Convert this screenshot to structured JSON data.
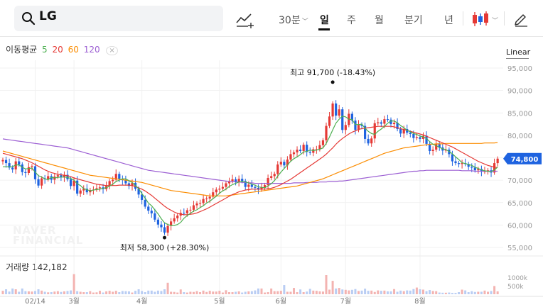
{
  "search": {
    "query": "LG"
  },
  "toolbar": {
    "periods": {
      "minute": "30분",
      "day": "일",
      "week": "주",
      "month": "월",
      "quarter": "분기",
      "year": "년"
    },
    "icons": [
      "search-icon",
      "drawing-tool-icon",
      "chevron-down-icon",
      "candlestick-type-icon",
      "pencil-icon"
    ]
  },
  "legend": {
    "label": "이동평균",
    "ma": [
      {
        "period": "5",
        "color": "#4caf50"
      },
      {
        "period": "20",
        "color": "#e53935"
      },
      {
        "period": "60",
        "color": "#fb8c00"
      },
      {
        "period": "120",
        "color": "#9c5fd3"
      }
    ],
    "close_symbol": "×"
  },
  "scale_label": "Linear",
  "volume": {
    "label": "거래량",
    "value": "142,182"
  },
  "watermark": [
    "NAVER",
    "FINANCIAL"
  ],
  "colors": {
    "up": "#e53935",
    "down": "#1e63e0",
    "price_tag": "#1e63e0"
  },
  "chart_data": {
    "type": "candlestick",
    "y_ticks": [
      "95,000",
      "90,000",
      "85,000",
      "80,000",
      "75,000",
      "70,000",
      "65,000",
      "60,000",
      "55,000"
    ],
    "ylim": [
      53500,
      97000
    ],
    "x_tick_labels": [
      {
        "label": "02/14",
        "index": 10
      },
      {
        "label": "3월",
        "index": 22
      },
      {
        "label": "4월",
        "index": 43
      },
      {
        "label": "5월",
        "index": 67
      },
      {
        "label": "6월",
        "index": 86
      },
      {
        "label": "7월",
        "index": 106
      },
      {
        "label": "8월",
        "index": 129
      }
    ],
    "volume_ticks": [
      "1000k",
      "500k"
    ],
    "annotations": {
      "high": {
        "prefix": "최고",
        "value": "91,700",
        "change": "(-18.43%)",
        "index": 102,
        "price": 91700
      },
      "low": {
        "prefix": "최저",
        "value": "58,300",
        "change": "(+28.30%)",
        "index": 50,
        "price": 58300
      }
    },
    "current_price": {
      "label": "74,800",
      "value": 74800
    },
    "closes": [
      74500,
      73800,
      72800,
      72400,
      74200,
      73500,
      71800,
      71600,
      72900,
      73100,
      70200,
      68800,
      70400,
      70200,
      70900,
      70100,
      70800,
      71100,
      70600,
      71200,
      70200,
      68700,
      69900,
      67000,
      67700,
      68100,
      67300,
      67800,
      67900,
      68200,
      68400,
      68000,
      68700,
      69800,
      70100,
      71400,
      70300,
      70000,
      69300,
      68700,
      69400,
      68100,
      66800,
      65600,
      64100,
      63200,
      62600,
      61200,
      60100,
      59500,
      58300,
      59800,
      60800,
      61500,
      62100,
      62700,
      62600,
      63300,
      63400,
      64400,
      64800,
      64900,
      65800,
      65900,
      66300,
      67300,
      67900,
      68100,
      68500,
      69300,
      69800,
      70200,
      69600,
      70300,
      69800,
      68500,
      69000,
      68500,
      68300,
      67900,
      68400,
      68900,
      70500,
      70900,
      71400,
      73500,
      74100,
      73300,
      74600,
      75800,
      76200,
      76800,
      76500,
      77900,
      76300,
      76100,
      76900,
      76900,
      77800,
      78900,
      82100,
      84200,
      87100,
      84400,
      85800,
      81200,
      82300,
      84800,
      83300,
      81200,
      82400,
      82100,
      79200,
      78200,
      79300,
      82700,
      82900,
      82600,
      83600,
      83500,
      82500,
      82800,
      81400,
      80400,
      81400,
      80600,
      80300,
      79400,
      79600,
      79200,
      79900,
      78100,
      76500,
      76800,
      78000,
      77300,
      76600,
      76800,
      75800,
      74200,
      73800,
      73600,
      73800,
      73600,
      73000,
      72800,
      72200,
      72500,
      71900,
      72000,
      72200,
      71700,
      73800,
      74800
    ],
    "ma5": [
      73000,
      73000,
      73000,
      73000,
      73400,
      73400,
      72900,
      72500,
      72600,
      72700,
      71800,
      71000,
      70700,
      70300,
      70100,
      70600,
      70500,
      70600,
      70700,
      70700,
      70600,
      70400,
      70000,
      69200,
      68800,
      68100,
      67900,
      67600,
      67800,
      67900,
      68000,
      68200,
      68300,
      68700,
      69100,
      69700,
      70000,
      70300,
      70300,
      69900,
      69500,
      68800,
      68100,
      67000,
      66000,
      64900,
      64300,
      63400,
      62500,
      61400,
      60500,
      60100,
      59900,
      59900,
      60100,
      60600,
      61500,
      62100,
      62600,
      63100,
      63400,
      63900,
      64300,
      64900,
      65300,
      65900,
      66400,
      67100,
      67600,
      68000,
      68600,
      69000,
      69300,
      69600,
      69700,
      69600,
      69400,
      69100,
      68900,
      68500,
      68400,
      68300,
      68700,
      69200,
      69900,
      70900,
      71800,
      72600,
      73400,
      74200,
      74800,
      75200,
      75700,
      76300,
      76400,
      76700,
      76600,
      76700,
      76900,
      77200,
      78200,
      79600,
      81200,
      82700,
      83600,
      84300,
      84100,
      83600,
      83500,
      82400,
      82400,
      82500,
      81600,
      80900,
      80400,
      80200,
      80900,
      81400,
      82000,
      82700,
      83200,
      83200,
      82800,
      82200,
      81700,
      81100,
      80800,
      80400,
      80200,
      79800,
      79700,
      79300,
      78600,
      78000,
      77700,
      77300,
      77000,
      76800,
      76400,
      75900,
      75200,
      74600,
      73900,
      73700,
      73500,
      73300,
      72900,
      72600,
      72300,
      72100,
      72000,
      71900,
      72300,
      72900
    ],
    "ma20": [
      76000,
      75800,
      75600,
      75400,
      75200,
      75000,
      74800,
      74500,
      74200,
      73900,
      73500,
      73100,
      72700,
      72300,
      72000,
      71700,
      71500,
      71300,
      71200,
      71100,
      71000,
      70800,
      70500,
      70300,
      70100,
      69900,
      69700,
      69500,
      69300,
      69100,
      69000,
      68900,
      68800,
      68800,
      68800,
      68800,
      68900,
      68900,
      68900,
      68900,
      68800,
      68600,
      68300,
      68000,
      67600,
      67100,
      66600,
      66000,
      65400,
      64800,
      64200,
      63700,
      63300,
      62900,
      62600,
      62400,
      62300,
      62300,
      62400,
      62500,
      62700,
      63000,
      63300,
      63600,
      64000,
      64400,
      64800,
      65200,
      65600,
      66000,
      66400,
      66800,
      67100,
      67400,
      67600,
      67800,
      67900,
      68000,
      68000,
      68000,
      68000,
      68000,
      68100,
      68200,
      68400,
      68700,
      69000,
      69400,
      69800,
      70200,
      70700,
      71200,
      71700,
      72200,
      72700,
      73200,
      73700,
      74200,
      74700,
      75200,
      75800,
      76500,
      77200,
      78000,
      78700,
      79300,
      79800,
      80300,
      80700,
      81000,
      81300,
      81500,
      81600,
      81700,
      81800,
      81900,
      82000,
      82000,
      82000,
      82000,
      82000,
      81900,
      81700,
      81500,
      81300,
      81100,
      80900,
      80700,
      80500,
      80300,
      80100,
      79800,
      79500,
      79200,
      78900,
      78600,
      78300,
      78000,
      77700,
      77400,
      77000,
      76600,
      76200,
      75800,
      75400,
      75000,
      74600,
      74200,
      73900,
      73600,
      73300,
      73100,
      72900,
      72800
    ],
    "ma60": [
      76500,
      76300,
      76100,
      75900,
      75700,
      75500,
      75300,
      75100,
      74900,
      74700,
      74500,
      74300,
      74100,
      73900,
      73700,
      73500,
      73300,
      73100,
      72900,
      72700,
      72500,
      72300,
      72100,
      71900,
      71700,
      71500,
      71300,
      71100,
      71000,
      70900,
      70800,
      70700,
      70600,
      70500,
      70400,
      70300,
      70200,
      70100,
      70000,
      69900,
      69800,
      69700,
      69600,
      69500,
      69300,
      69100,
      68900,
      68700,
      68500,
      68300,
      68100,
      67900,
      67700,
      67600,
      67500,
      67400,
      67300,
      67200,
      67100,
      67000,
      66900,
      66800,
      66700,
      66600,
      66500,
      66500,
      66500,
      66500,
      66500,
      66500,
      66600,
      66700,
      66800,
      66900,
      67000,
      67100,
      67200,
      67300,
      67400,
      67500,
      67600,
      67700,
      67800,
      67900,
      68000,
      68100,
      68200,
      68300,
      68400,
      68500,
      68600,
      68700,
      68900,
      69100,
      69300,
      69500,
      69700,
      69900,
      70100,
      70300,
      70600,
      70900,
      71200,
      71500,
      71800,
      72100,
      72400,
      72700,
      73000,
      73300,
      73600,
      73900,
      74200,
      74500,
      74800,
      75100,
      75400,
      75700,
      76000,
      76200,
      76400,
      76600,
      76800,
      77000,
      77200,
      77300,
      77400,
      77500,
      77600,
      77700,
      77800,
      77900,
      78000,
      78000,
      78100,
      78100,
      78100,
      78200,
      78200,
      78200,
      78200,
      78200,
      78200,
      78200,
      78200,
      78200,
      78200,
      78200,
      78200,
      78300,
      78300,
      78300,
      78300,
      78400
    ],
    "ma120": [
      79200,
      79100,
      79000,
      78900,
      78800,
      78700,
      78600,
      78500,
      78400,
      78300,
      78200,
      78100,
      78000,
      77900,
      77800,
      77700,
      77600,
      77500,
      77400,
      77300,
      77200,
      77000,
      76800,
      76600,
      76400,
      76200,
      76000,
      75800,
      75600,
      75400,
      75200,
      75000,
      74800,
      74600,
      74400,
      74200,
      74000,
      73800,
      73600,
      73400,
      73200,
      73000,
      72800,
      72600,
      72400,
      72200,
      72100,
      72000,
      71900,
      71800,
      71700,
      71600,
      71500,
      71400,
      71300,
      71200,
      71100,
      71000,
      70900,
      70800,
      70700,
      70600,
      70500,
      70400,
      70300,
      70200,
      70100,
      70000,
      69900,
      69800,
      69700,
      69700,
      69600,
      69600,
      69500,
      69500,
      69400,
      69400,
      69300,
      69300,
      69300,
      69300,
      69300,
      69300,
      69300,
      69300,
      69300,
      69300,
      69300,
      69300,
      69400,
      69400,
      69400,
      69400,
      69500,
      69500,
      69500,
      69500,
      69600,
      69600,
      69600,
      69700,
      69700,
      69700,
      69800,
      69800,
      69900,
      70000,
      70100,
      70200,
      70300,
      70400,
      70500,
      70600,
      70700,
      70800,
      70900,
      71000,
      71100,
      71200,
      71300,
      71400,
      71500,
      71600,
      71700,
      71800,
      71900,
      72000,
      72000,
      72100,
      72100,
      72200,
      72200,
      72200,
      72200,
      72200,
      72200,
      72200,
      72200,
      72200,
      72200,
      72200,
      72100,
      72100,
      72100,
      72100,
      72000,
      72000,
      72000,
      72000,
      72000,
      72000,
      72000,
      72000
    ],
    "volume_k": [
      180,
      260,
      140,
      300,
      260,
      130,
      300,
      160,
      150,
      140,
      170,
      260,
      190,
      130,
      100,
      110,
      140,
      160,
      120,
      150,
      170,
      200,
      1050,
      160,
      130,
      110,
      110,
      160,
      90,
      100,
      180,
      90,
      150,
      180,
      130,
      180,
      110,
      170,
      160,
      150,
      90,
      180,
      260,
      170,
      110,
      190,
      190,
      130,
      190,
      170,
      260,
      600,
      130,
      120,
      90,
      250,
      110,
      90,
      130,
      120,
      160,
      110,
      190,
      120,
      180,
      140,
      140,
      180,
      90,
      210,
      110,
      110,
      130,
      150,
      90,
      130,
      150,
      160,
      200,
      300,
      300,
      90,
      110,
      300,
      160,
      160,
      180,
      480,
      130,
      130,
      330,
      110,
      250,
      110,
      140,
      280,
      190,
      180,
      150,
      140,
      1000,
      240,
      700,
      300,
      330,
      250,
      230,
      200,
      230,
      270,
      170,
      190,
      290,
      180,
      190,
      120,
      200,
      180,
      190,
      150,
      150,
      270,
      130,
      190,
      160,
      200,
      190,
      270,
      350,
      260,
      240,
      160,
      220,
      170,
      160,
      90,
      80,
      80,
      90,
      70,
      70,
      110,
      240,
      200,
      110,
      160,
      120,
      130,
      130,
      190,
      130,
      170,
      430,
      150
    ]
  }
}
